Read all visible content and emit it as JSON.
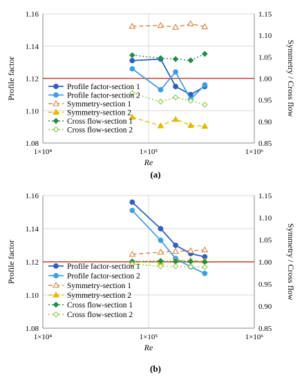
{
  "figure": {
    "colors": {
      "profile1": "#2E5FC0",
      "profile2": "#3AA0E6",
      "symmetry1": "#D9823B",
      "symmetry2": "#E6B800",
      "cross1": "#1E8E4A",
      "cross2": "#8CC63F",
      "refline": "#C0392B",
      "grid": "#D9D9D9",
      "axis": "#888888"
    }
  },
  "chart_data": [
    {
      "type": "line",
      "caption": "(a)",
      "xlabel": "Re",
      "ylabel": "Profile factor",
      "y2label": "Symmetry / Cross flow",
      "xscale": "log",
      "xlim": [
        10000,
        1000000
      ],
      "xticks": [
        10000,
        100000,
        1000000
      ],
      "xticklabels": [
        "1×10⁴",
        "1×10⁵",
        "1×10⁶"
      ],
      "ylim": [
        1.08,
        1.16
      ],
      "yticks": [
        "1.08",
        "1.10",
        "1.12",
        "1.14",
        "1.16"
      ],
      "y2lim": [
        0.85,
        1.15
      ],
      "y2ticks": [
        "0.85",
        "0.90",
        "0.95",
        "1.00",
        "1.05",
        "1.10",
        "1.15"
      ],
      "grid": true,
      "legend_position": "lower-left",
      "reference_line": {
        "axis": "y2",
        "value": 1.0
      },
      "x": [
        70000,
        130000,
        180000,
        250000,
        340000
      ],
      "series": [
        {
          "name": "Profile factor-section 1",
          "axis": "y",
          "style": "solid",
          "marker": "circle",
          "color_key": "profile1",
          "values": [
            1.131,
            1.132,
            1.115,
            1.11,
            1.115
          ]
        },
        {
          "name": "Profile factor-section 2",
          "axis": "y",
          "style": "solid",
          "marker": "circle",
          "color_key": "profile2",
          "values": [
            1.126,
            1.113,
            1.124,
            1.107,
            1.116
          ]
        },
        {
          "name": "Symmetry-section 1",
          "axis": "y2",
          "style": "dashed",
          "marker": "triangle-open",
          "color_key": "symmetry1",
          "values": [
            1.121,
            1.123,
            1.119,
            1.127,
            1.12
          ]
        },
        {
          "name": "Symmetry-section 2",
          "axis": "y2",
          "style": "dashed",
          "marker": "triangle",
          "color_key": "symmetry2",
          "values": [
            0.91,
            0.89,
            0.905,
            0.891,
            0.889
          ]
        },
        {
          "name": "Cross flow-section 1",
          "axis": "y2",
          "style": "dotted",
          "marker": "diamond",
          "color_key": "cross1",
          "values": [
            1.054,
            1.047,
            1.045,
            1.042,
            1.057
          ]
        },
        {
          "name": "Cross flow-section 2",
          "axis": "y2",
          "style": "dotted",
          "marker": "diamond-open",
          "color_key": "cross2",
          "values": [
            0.966,
            0.946,
            0.956,
            0.948,
            0.939
          ]
        }
      ]
    },
    {
      "type": "line",
      "caption": "(b)",
      "xlabel": "Re",
      "ylabel": "Profile factor",
      "y2label": "Symmetry / Cross flow",
      "xscale": "log",
      "xlim": [
        10000,
        1000000
      ],
      "xticks": [
        10000,
        100000,
        1000000
      ],
      "xticklabels": [
        "1×10⁴",
        "1×10⁵",
        "1×10⁶"
      ],
      "ylim": [
        1.08,
        1.16
      ],
      "yticks": [
        "1.08",
        "1.10",
        "1.12",
        "1.14",
        "1.16"
      ],
      "y2lim": [
        0.85,
        1.15
      ],
      "y2ticks": [
        "0.85",
        "0.90",
        "0.95",
        "1.00",
        "1.05",
        "1.10",
        "1.15"
      ],
      "grid": true,
      "legend_position": "lower-left",
      "reference_line": {
        "axis": "y2",
        "value": 1.0
      },
      "x": [
        70000,
        130000,
        180000,
        250000,
        340000
      ],
      "series": [
        {
          "name": "Profile factor-section 1",
          "axis": "y",
          "style": "solid",
          "marker": "circle",
          "color_key": "profile1",
          "values": [
            1.156,
            1.14,
            1.13,
            1.125,
            1.123
          ]
        },
        {
          "name": "Profile factor-section 2",
          "axis": "y",
          "style": "solid",
          "marker": "circle",
          "color_key": "profile2",
          "values": [
            1.151,
            1.133,
            1.122,
            1.117,
            1.113
          ]
        },
        {
          "name": "Symmetry-section 1",
          "axis": "y2",
          "style": "dashed",
          "marker": "triangle-open",
          "color_key": "symmetry1",
          "values": [
            1.017,
            1.022,
            1.024,
            1.025,
            1.027
          ]
        },
        {
          "name": "Symmetry-section 2",
          "axis": "y2",
          "style": "dashed",
          "marker": "triangle",
          "color_key": "symmetry2",
          "values": [
            1.0,
            0.999,
            1.003,
            1.003,
            1.002
          ]
        },
        {
          "name": "Cross flow-section 1",
          "axis": "y2",
          "style": "dotted",
          "marker": "diamond",
          "color_key": "cross1",
          "values": [
            1.001,
            1.002,
            1.001,
            1.001,
            1.0
          ]
        },
        {
          "name": "Cross flow-section 2",
          "axis": "y2",
          "style": "dotted",
          "marker": "diamond-open",
          "color_key": "cross2",
          "values": [
            0.995,
            0.99,
            0.99,
            0.989,
            0.988
          ]
        }
      ]
    }
  ]
}
